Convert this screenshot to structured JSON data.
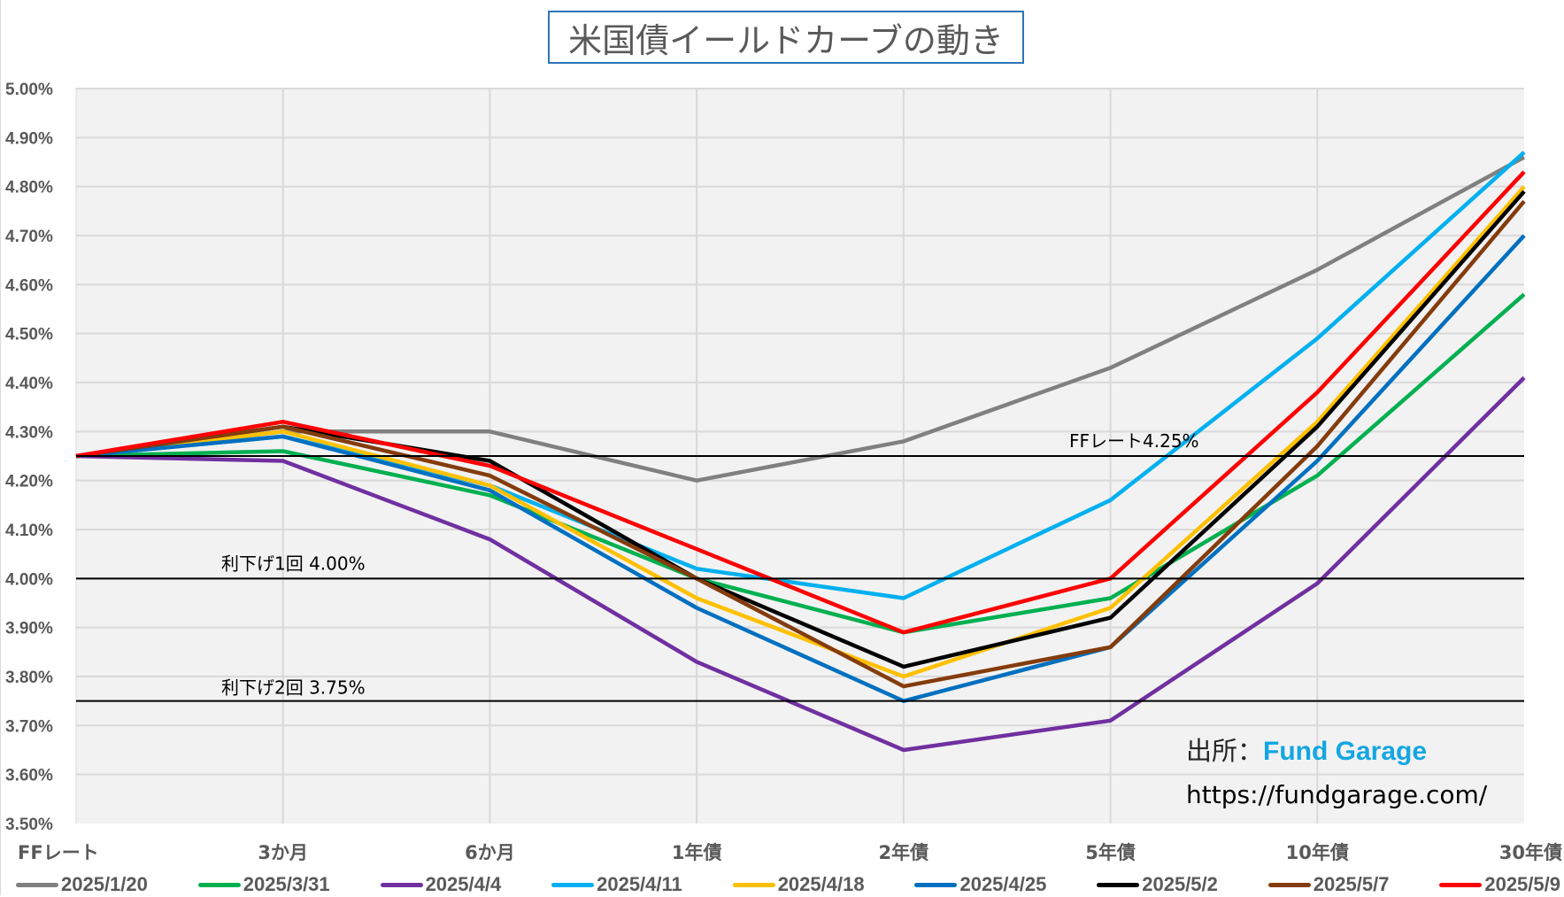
{
  "chart_data": {
    "type": "line",
    "title": "米国債イールドカーブの動き",
    "xlabel": "",
    "ylabel": "",
    "categories": [
      "FFレート",
      "3か月",
      "6か月",
      "1年債",
      "2年債",
      "5年債",
      "10年債",
      "30年債"
    ],
    "ylim": [
      3.5,
      5.0
    ],
    "ytick_step": 0.1,
    "ytick_labels": [
      "3.50%",
      "3.60%",
      "3.70%",
      "3.80%",
      "3.90%",
      "4.00%",
      "4.10%",
      "4.20%",
      "4.30%",
      "4.40%",
      "4.50%",
      "4.60%",
      "4.70%",
      "4.80%",
      "4.90%",
      "5.00%"
    ],
    "grid": true,
    "legend_position": "bottom",
    "series": [
      {
        "name": "2025/1/20",
        "color": "#808080",
        "values": [
          4.25,
          4.3,
          4.3,
          4.2,
          4.28,
          4.43,
          4.63,
          4.86
        ]
      },
      {
        "name": "2025/3/31",
        "color": "#00b050",
        "values": [
          4.25,
          4.26,
          4.17,
          4.0,
          3.89,
          3.96,
          4.21,
          4.58
        ]
      },
      {
        "name": "2025/4/4",
        "color": "#7030a0",
        "values": [
          4.25,
          4.24,
          4.08,
          3.83,
          3.65,
          3.71,
          3.99,
          4.41
        ]
      },
      {
        "name": "2025/4/11",
        "color": "#00b0f0",
        "values": [
          4.25,
          4.29,
          4.19,
          4.02,
          3.96,
          4.16,
          4.49,
          4.87
        ]
      },
      {
        "name": "2025/4/18",
        "color": "#ffc000",
        "values": [
          4.25,
          4.3,
          4.19,
          3.96,
          3.8,
          3.94,
          4.32,
          4.8
        ]
      },
      {
        "name": "2025/4/25",
        "color": "#0070c0",
        "values": [
          4.25,
          4.29,
          4.18,
          3.94,
          3.75,
          3.86,
          4.24,
          4.7
        ]
      },
      {
        "name": "2025/5/2",
        "color": "#000000",
        "values": [
          4.25,
          4.31,
          4.24,
          4.0,
          3.82,
          3.92,
          4.31,
          4.79
        ]
      },
      {
        "name": "2025/5/7",
        "color": "#843c0c",
        "values": [
          4.25,
          4.31,
          4.21,
          4.0,
          3.78,
          3.86,
          4.27,
          4.77
        ]
      },
      {
        "name": "2025/5/9",
        "color": "#ff0000",
        "values": [
          4.25,
          4.32,
          4.23,
          4.06,
          3.89,
          4.0,
          4.38,
          4.83
        ]
      }
    ],
    "reference_lines": [
      {
        "value": 4.25,
        "label": "FFレート4.25%"
      },
      {
        "value": 4.0,
        "label": "利下げ1回 4.00%"
      },
      {
        "value": 3.75,
        "label": "利下げ2回 3.75%"
      }
    ]
  },
  "source": {
    "prefix": "出所：",
    "brand": "Fund Garage",
    "url": "https://fundgarage.com/"
  }
}
